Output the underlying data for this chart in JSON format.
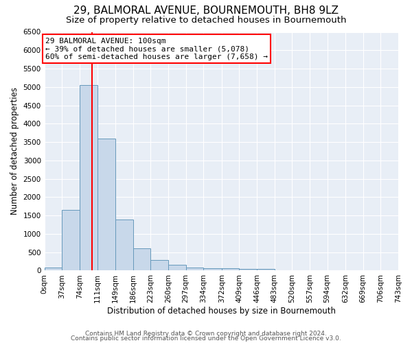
{
  "title": "29, BALMORAL AVENUE, BOURNEMOUTH, BH8 9LZ",
  "subtitle": "Size of property relative to detached houses in Bournemouth",
  "xlabel": "Distribution of detached houses by size in Bournemouth",
  "ylabel": "Number of detached properties",
  "bar_color": "#c8d8ea",
  "bar_edge_color": "#6699bb",
  "background_color": "#e8eef6",
  "grid_color": "#ffffff",
  "red_line_x": 100,
  "annotation_text": "29 BALMORAL AVENUE: 100sqm\n← 39% of detached houses are smaller (5,078)\n60% of semi-detached houses are larger (7,658) →",
  "bin_edges": [
    0,
    37,
    74,
    111,
    149,
    186,
    223,
    260,
    297,
    334,
    372,
    409,
    446,
    483,
    520,
    557,
    594,
    632,
    669,
    706,
    743
  ],
  "bin_counts": [
    75,
    1650,
    5050,
    3600,
    1400,
    600,
    280,
    150,
    90,
    70,
    60,
    55,
    55,
    10,
    5,
    3,
    2,
    2,
    1,
    1
  ],
  "ylim": [
    0,
    6500
  ],
  "yticks": [
    0,
    500,
    1000,
    1500,
    2000,
    2500,
    3000,
    3500,
    4000,
    4500,
    5000,
    5500,
    6000,
    6500
  ],
  "footer_lines": [
    "Contains HM Land Registry data © Crown copyright and database right 2024.",
    "Contains public sector information licensed under the Open Government Licence v3.0."
  ],
  "title_fontsize": 11,
  "subtitle_fontsize": 9.5,
  "axis_label_fontsize": 8.5,
  "tick_fontsize": 7.5,
  "annotation_fontsize": 8,
  "footer_fontsize": 6.5
}
